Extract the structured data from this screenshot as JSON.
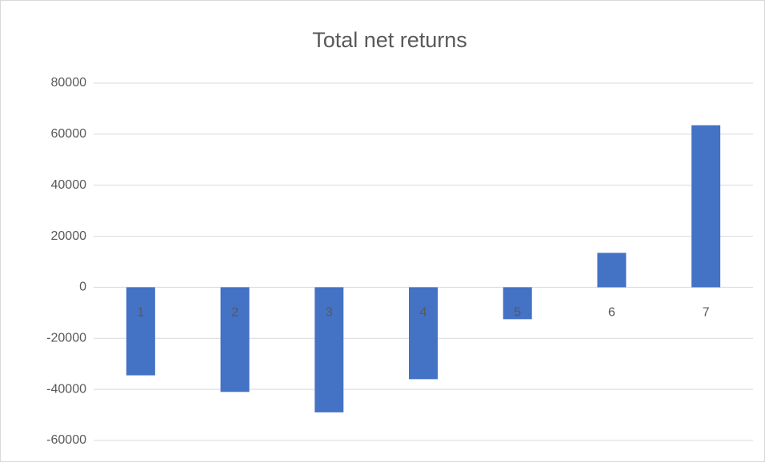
{
  "chart_data": {
    "type": "bar",
    "title": "Total net returns",
    "categories": [
      "1",
      "2",
      "3",
      "4",
      "5",
      "6",
      "7"
    ],
    "values": [
      -34500,
      -41000,
      -49000,
      -36000,
      -12500,
      13500,
      63500
    ],
    "color": "#4472c4",
    "ylim": [
      -60000,
      80000
    ],
    "yticks": [
      -60000,
      -40000,
      -20000,
      0,
      20000,
      40000,
      60000,
      80000
    ],
    "grid": true
  }
}
